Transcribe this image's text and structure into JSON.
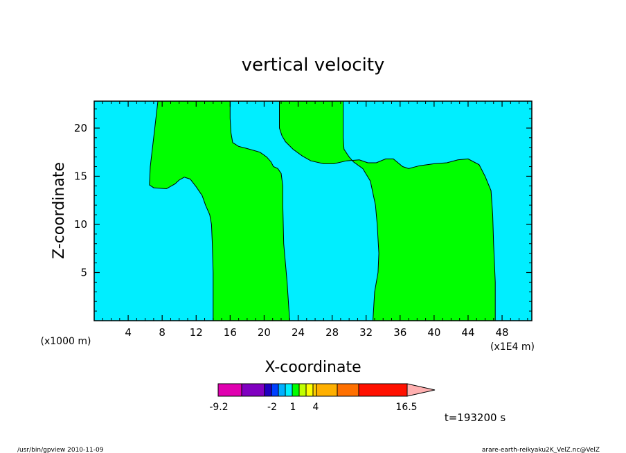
{
  "chart_data": {
    "type": "contour",
    "title": "vertical velocity",
    "xlabel": "X-coordinate",
    "ylabel": "Z-coordinate",
    "x_unit_label": "(x1000 m)",
    "x_unit_label_right": "(x1E4 m)",
    "xlim": [
      0,
      51.5
    ],
    "ylim": [
      0,
      22.8
    ],
    "x_ticks": [
      "4",
      "8",
      "12",
      "16",
      "20",
      "24",
      "28",
      "32",
      "36",
      "40",
      "44",
      "48"
    ],
    "y_ticks": [
      "5",
      "10",
      "15",
      "20"
    ],
    "time_label": "t=193200 s",
    "colorbar": {
      "labels": [
        {
          "text": "-9.2",
          "value": -9.2
        },
        {
          "text": "-2",
          "value": -2
        },
        {
          "text": "1",
          "value": 1
        },
        {
          "text": "4",
          "value": 4
        },
        {
          "text": "16.5",
          "value": 16.5
        }
      ],
      "colors": [
        "#e000b0",
        "#8000c0",
        "#2000c0",
        "#0040ff",
        "#00b0ff",
        "#00f0ff",
        "#00ff00",
        "#c0ff00",
        "#ffff00",
        "#ffd000",
        "#ffb000",
        "#ff7000",
        "#ff1000",
        "#ff8080",
        "#ffb0b0"
      ]
    },
    "background_color": "#00eeff",
    "region_color": "#00ff00",
    "regions": [
      {
        "name": "green-region-left",
        "points": [
          [
            7.5,
            22.8
          ],
          [
            7,
            19
          ],
          [
            6.6,
            16
          ],
          [
            6.5,
            14.1
          ],
          [
            7,
            13.8
          ],
          [
            8.5,
            13.7
          ],
          [
            9.5,
            14.2
          ],
          [
            10,
            14.6
          ],
          [
            10.6,
            14.9
          ],
          [
            11.3,
            14.7
          ],
          [
            12,
            13.9
          ],
          [
            12.7,
            13
          ],
          [
            13.1,
            12
          ],
          [
            13.6,
            11
          ],
          [
            13.8,
            10
          ],
          [
            13.9,
            8
          ],
          [
            14,
            5
          ],
          [
            14,
            0
          ],
          [
            23,
            0
          ],
          [
            22.7,
            4
          ],
          [
            22.3,
            8
          ],
          [
            22.2,
            12
          ],
          [
            22.2,
            14
          ],
          [
            22,
            15.3
          ],
          [
            21.6,
            15.8
          ],
          [
            21.1,
            16
          ],
          [
            20.8,
            16.5
          ],
          [
            20.3,
            17
          ],
          [
            19.5,
            17.5
          ],
          [
            17.9,
            17.9
          ],
          [
            17,
            18.1
          ],
          [
            16.3,
            18.5
          ],
          [
            16.1,
            19.5
          ],
          [
            16,
            21
          ],
          [
            16,
            22.8
          ]
        ]
      },
      {
        "name": "green-region-right",
        "points": [
          [
            21.8,
            22.8
          ],
          [
            21.8,
            20
          ],
          [
            22.1,
            19.2
          ],
          [
            22.5,
            18.6
          ],
          [
            23.4,
            17.8
          ],
          [
            24.5,
            17.1
          ],
          [
            25.5,
            16.6
          ],
          [
            27,
            16.3
          ],
          [
            28.2,
            16.3
          ],
          [
            29.7,
            16.6
          ],
          [
            31.2,
            16.7
          ],
          [
            32.2,
            16.4
          ],
          [
            33.2,
            16.4
          ],
          [
            34.3,
            16.8
          ],
          [
            35.2,
            16.8
          ],
          [
            36.3,
            16
          ],
          [
            37,
            15.8
          ],
          [
            38.3,
            16.1
          ],
          [
            40,
            16.3
          ],
          [
            41.5,
            16.4
          ],
          [
            42.8,
            16.7
          ],
          [
            44,
            16.8
          ],
          [
            45.3,
            16.2
          ],
          [
            46,
            15
          ],
          [
            46.7,
            13.5
          ],
          [
            46.9,
            11
          ],
          [
            47,
            8
          ],
          [
            47.2,
            4
          ],
          [
            47.2,
            0
          ],
          [
            32.8,
            0
          ],
          [
            33,
            3
          ],
          [
            33.4,
            5
          ],
          [
            33.5,
            7
          ],
          [
            33.3,
            10
          ],
          [
            33.1,
            12
          ],
          [
            32.5,
            14.5
          ],
          [
            31.6,
            15.8
          ],
          [
            30.5,
            16.5
          ],
          [
            30,
            17
          ],
          [
            29.4,
            17.8
          ],
          [
            29.3,
            19
          ],
          [
            29.3,
            22.8
          ]
        ]
      }
    ]
  },
  "footer": {
    "left": "/usr/bin/gpview  2010-11-09",
    "right": "arare-earth-reikyaku2K_VelZ.nc@VelZ"
  }
}
